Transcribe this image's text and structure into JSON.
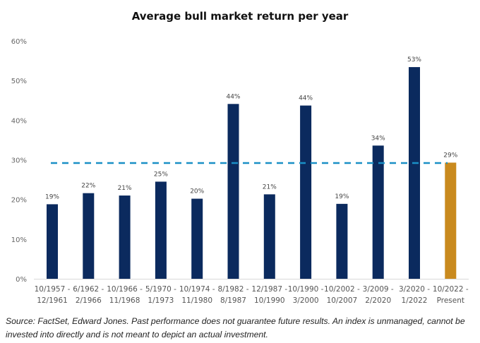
{
  "chart_data": {
    "type": "bar",
    "title": "Average bull market return per year",
    "categories": [
      [
        "10/1957 -",
        "12/1961"
      ],
      [
        "6/1962 -",
        "2/1966"
      ],
      [
        "10/1966 -",
        "11/1968"
      ],
      [
        "5/1970 -",
        "1/1973"
      ],
      [
        "10/1974 -",
        "11/1980"
      ],
      [
        "8/1982 -",
        "8/1987"
      ],
      [
        "12/1987 -",
        "10/1990"
      ],
      [
        "10/1990 -",
        "3/2000"
      ],
      [
        "10/2002 -",
        "10/2007"
      ],
      [
        "3/2009 -",
        "2/2020"
      ],
      [
        "3/2020 -",
        "1/2022"
      ],
      [
        "10/2022 -",
        "Present"
      ]
    ],
    "values": [
      18.8,
      21.6,
      21.0,
      24.5,
      20.2,
      44.1,
      21.3,
      43.7,
      18.9,
      33.6,
      53.4,
      29.3
    ],
    "data_labels": [
      "19%",
      "22%",
      "21%",
      "25%",
      "20%",
      "44%",
      "21%",
      "44%",
      "19%",
      "34%",
      "53%",
      "29%"
    ],
    "bar_colors": [
      "#0b2a5e",
      "#0b2a5e",
      "#0b2a5e",
      "#0b2a5e",
      "#0b2a5e",
      "#0b2a5e",
      "#0b2a5e",
      "#0b2a5e",
      "#0b2a5e",
      "#0b2a5e",
      "#0b2a5e",
      "#c98a1e"
    ],
    "average_line": {
      "value": 29.2,
      "color": "#1a8fc6",
      "style": "dashed"
    },
    "ylim": [
      0,
      60
    ],
    "yticks": [
      "0%",
      "10%",
      "20%",
      "30%",
      "40%",
      "50%",
      "60%"
    ],
    "xlabel": "",
    "ylabel": "",
    "grid": false,
    "legend": "none"
  },
  "footnote": "Source: FactSet, Edward Jones. Past performance does not guarantee future results. An index is unmanaged, cannot be invested into directly and is not meant to depict an actual investment."
}
